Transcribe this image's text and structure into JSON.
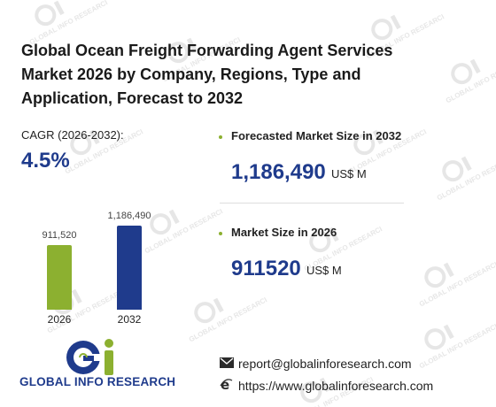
{
  "title": "Global Ocean Freight Forwarding Agent Services Market 2026 by Company, Regions, Type and Application, Forecast to 2032",
  "cagr": {
    "label": "CAGR (2026-2032):",
    "value": "4.5%"
  },
  "chart_data": {
    "type": "bar",
    "categories": [
      "2026",
      "2032"
    ],
    "values": [
      911520,
      1186490
    ],
    "value_labels": [
      "911,520",
      "1,186,490"
    ],
    "colors": [
      "#8cb030",
      "#1f3b8c"
    ]
  },
  "stats": {
    "forecast": {
      "label": "Forecasted Market Size in 2032",
      "value": "1,186,490",
      "unit": "US$ M"
    },
    "current": {
      "label": "Market Size in 2026",
      "value": "911520",
      "unit": "US$ M"
    }
  },
  "contact": {
    "email": "report@globalinforesearch.com",
    "website": "https://www.globalinforesearch.com",
    "email_icon": "envelope-icon",
    "web_icon": "internet-explorer-icon"
  },
  "logo": {
    "text": "GLOBAL INFO RESEARCH"
  },
  "watermark": {
    "text": "GLOBAL INFO RESEARCH"
  },
  "colors": {
    "accent": "#1f3b8c",
    "green": "#8cb030"
  }
}
